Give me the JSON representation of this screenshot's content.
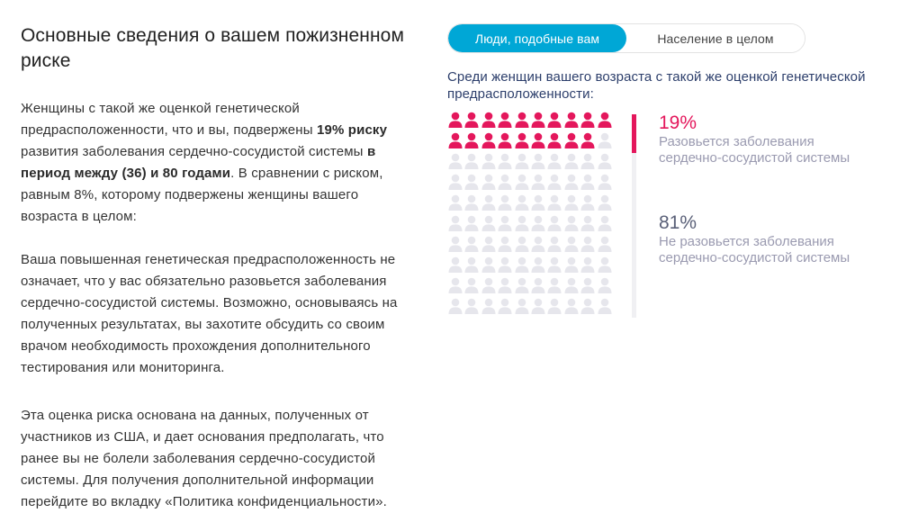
{
  "left": {
    "title": "Основные сведения о вашем пожизненном риске",
    "paragraph1": {
      "text_a": "Женщины с такой же оценкой генетической предрасположенности, что и вы, подвержены ",
      "bold_a": "19% риску",
      "text_b": " развития заболевания сердечно-сосудистой системы ",
      "bold_b": "в период между (36) и 80 годами",
      "text_c": ". В сравнении с риском, равным 8%, которому подвержены женщины вашего возраста в целом:"
    },
    "paragraph2": "Ваша повышенная генетическая предрасположенность не означает, что у вас обязательно разовьется заболевания сердечно-сосудистой системы. Возможно, основываясь на полученных результатах, вы захотите обсудить со своим врачом необходимость прохождения дополнительного тестирования или мониторинга.",
    "paragraph3": "Эта оценка риска основана на данных, полученных от участников из США, и дает основания предполагать, что ранее вы не болели заболевания сердечно-сосудистой системы. Для получения дополнительной информации перейдите во вкладку «Политика конфиденциальности»."
  },
  "toggle": {
    "active_label": "Люди, подобные вам",
    "inactive_label": "Население в целом"
  },
  "subtitle": "Среди женщин вашего возраста с такой же оценкой генетической предрасположенности:",
  "pictogram": {
    "total": 100,
    "affected": 19,
    "affected_color": "#e4175c",
    "unaffected_color": "#e6e6ec"
  },
  "stats": {
    "affected_pct": "19%",
    "affected_label": "Разовьется заболевания сердечно-сосудистой системы",
    "unaffected_pct": "81%",
    "unaffected_label": "Не разовьется заболевания сердечно-сосудистой системы"
  },
  "colors": {
    "accent": "#00a7d6",
    "risk": "#e4175c"
  }
}
